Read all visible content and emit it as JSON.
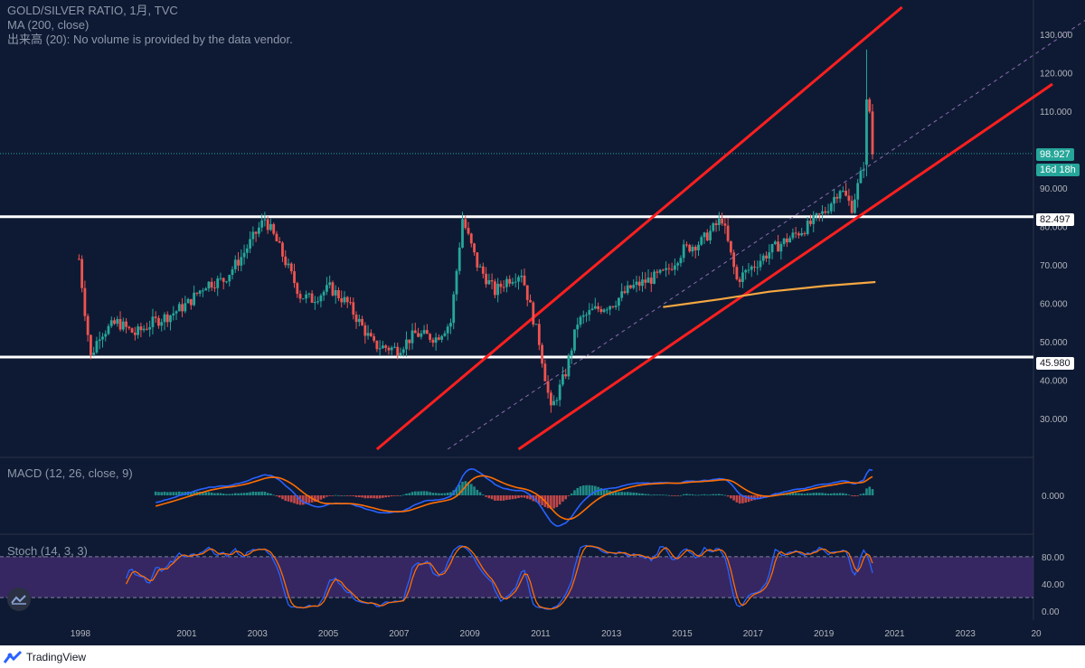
{
  "legend": {
    "line1": "GOLD/SILVER RATIO, 1月, TVC",
    "line2": "MA (200, close)",
    "line3": "出来高 (20): No volume is provided by the data vendor."
  },
  "panes": {
    "macd_title": "MACD (12, 26, close, 9)",
    "stoch_title": "Stoch (14, 3, 3)"
  },
  "price_tags": {
    "current": "98.927",
    "countdown": "16d 18h",
    "upper_level": "82.497",
    "lower_level": "45.980"
  },
  "footer": {
    "brand": "TradingView"
  },
  "colors": {
    "background": "#0e1a33",
    "up": "#26a69a",
    "down": "#ef5350",
    "channel": "#ff1f1f",
    "level": "#ffffff",
    "ma": "#f5a742",
    "macd": "#2962ff",
    "signal": "#ff6d00",
    "stoch_band": "#3d2a6b"
  },
  "chart_data": [
    {
      "type": "candlestick",
      "series_name": "GOLD/SILVER RATIO",
      "x_axis": {
        "tick_labels": [
          "1998",
          "2001",
          "2003",
          "2005",
          "2007",
          "2009",
          "2011",
          "2013",
          "2015",
          "2017",
          "2019",
          "2021",
          "2023",
          "20"
        ]
      },
      "y_axis": {
        "tick_labels": [
          "30.000",
          "40.000",
          "50.000",
          "60.000",
          "70.000",
          "80.000",
          "90.000",
          "110.000",
          "120.000",
          "130.000"
        ],
        "range": [
          22,
          137
        ]
      },
      "horizontal_levels": [
        82.497,
        45.98
      ],
      "current_price": 98.927,
      "approx_monthly_close": [
        [
          "1997-12",
          71.5
        ],
        [
          "1998-02",
          58
        ],
        [
          "1998-04",
          46
        ],
        [
          "1998-07",
          52
        ],
        [
          "1999-01",
          55
        ],
        [
          "1999-07",
          52
        ],
        [
          "2000-01",
          55
        ],
        [
          "2000-07",
          57
        ],
        [
          "2001-01",
          60
        ],
        [
          "2001-07",
          65
        ],
        [
          "2002-01",
          66
        ],
        [
          "2002-07",
          72
        ],
        [
          "2003-03",
          82
        ],
        [
          "2003-07",
          76
        ],
        [
          "2004-03",
          62
        ],
        [
          "2004-07",
          61
        ],
        [
          "2005-01",
          64
        ],
        [
          "2005-07",
          60
        ],
        [
          "2006-04",
          49
        ],
        [
          "2006-12",
          48
        ],
        [
          "2007-06",
          52
        ],
        [
          "2008-01",
          51
        ],
        [
          "2008-06",
          55
        ],
        [
          "2008-10",
          82
        ],
        [
          "2009-03",
          70
        ],
        [
          "2009-09",
          63
        ],
        [
          "2010-01",
          66
        ],
        [
          "2010-06",
          68
        ],
        [
          "2010-12",
          50
        ],
        [
          "2011-04",
          32
        ],
        [
          "2011-09",
          42
        ],
        [
          "2012-01",
          55
        ],
        [
          "2012-06",
          58
        ],
        [
          "2013-01",
          60
        ],
        [
          "2013-07",
          64
        ],
        [
          "2014-01",
          66
        ],
        [
          "2014-07",
          68
        ],
        [
          "2015-01",
          74
        ],
        [
          "2015-07",
          76
        ],
        [
          "2016-02",
          82
        ],
        [
          "2016-07",
          66
        ],
        [
          "2017-01",
          70
        ],
        [
          "2017-07",
          74
        ],
        [
          "2018-01",
          77
        ],
        [
          "2018-07",
          80
        ],
        [
          "2019-01",
          84
        ],
        [
          "2019-06",
          90
        ],
        [
          "2019-10",
          85
        ],
        [
          "2020-02",
          96
        ],
        [
          "2020-03",
          112
        ],
        [
          "2020-04",
          110
        ],
        [
          "2020-05",
          99
        ]
      ],
      "moving_average_200": [
        [
          "2014-06",
          59
        ],
        [
          "2016-01",
          61
        ],
        [
          "2017-06",
          63
        ],
        [
          "2019-01",
          64.5
        ],
        [
          "2020-06",
          65.5
        ]
      ],
      "channel_lines": [
        {
          "name": "upper",
          "points": [
            [
              "2006-05",
              22
            ],
            [
              "2021-03",
              137
            ]
          ]
        },
        {
          "name": "lower",
          "points": [
            [
              "2010-05",
              22
            ],
            [
              "2025-06",
              117
            ]
          ]
        }
      ]
    },
    {
      "type": "line",
      "title": "MACD (12, 26, close, 9)",
      "y_axis": {
        "tick_labels": [
          "0.000"
        ]
      }
    },
    {
      "type": "line",
      "title": "Stoch (14, 3, 3)",
      "y_axis": {
        "tick_labels": [
          "80.00",
          "40.00",
          "0.00"
        ],
        "range": [
          -5,
          105
        ]
      },
      "bands": [
        20,
        80
      ]
    }
  ]
}
